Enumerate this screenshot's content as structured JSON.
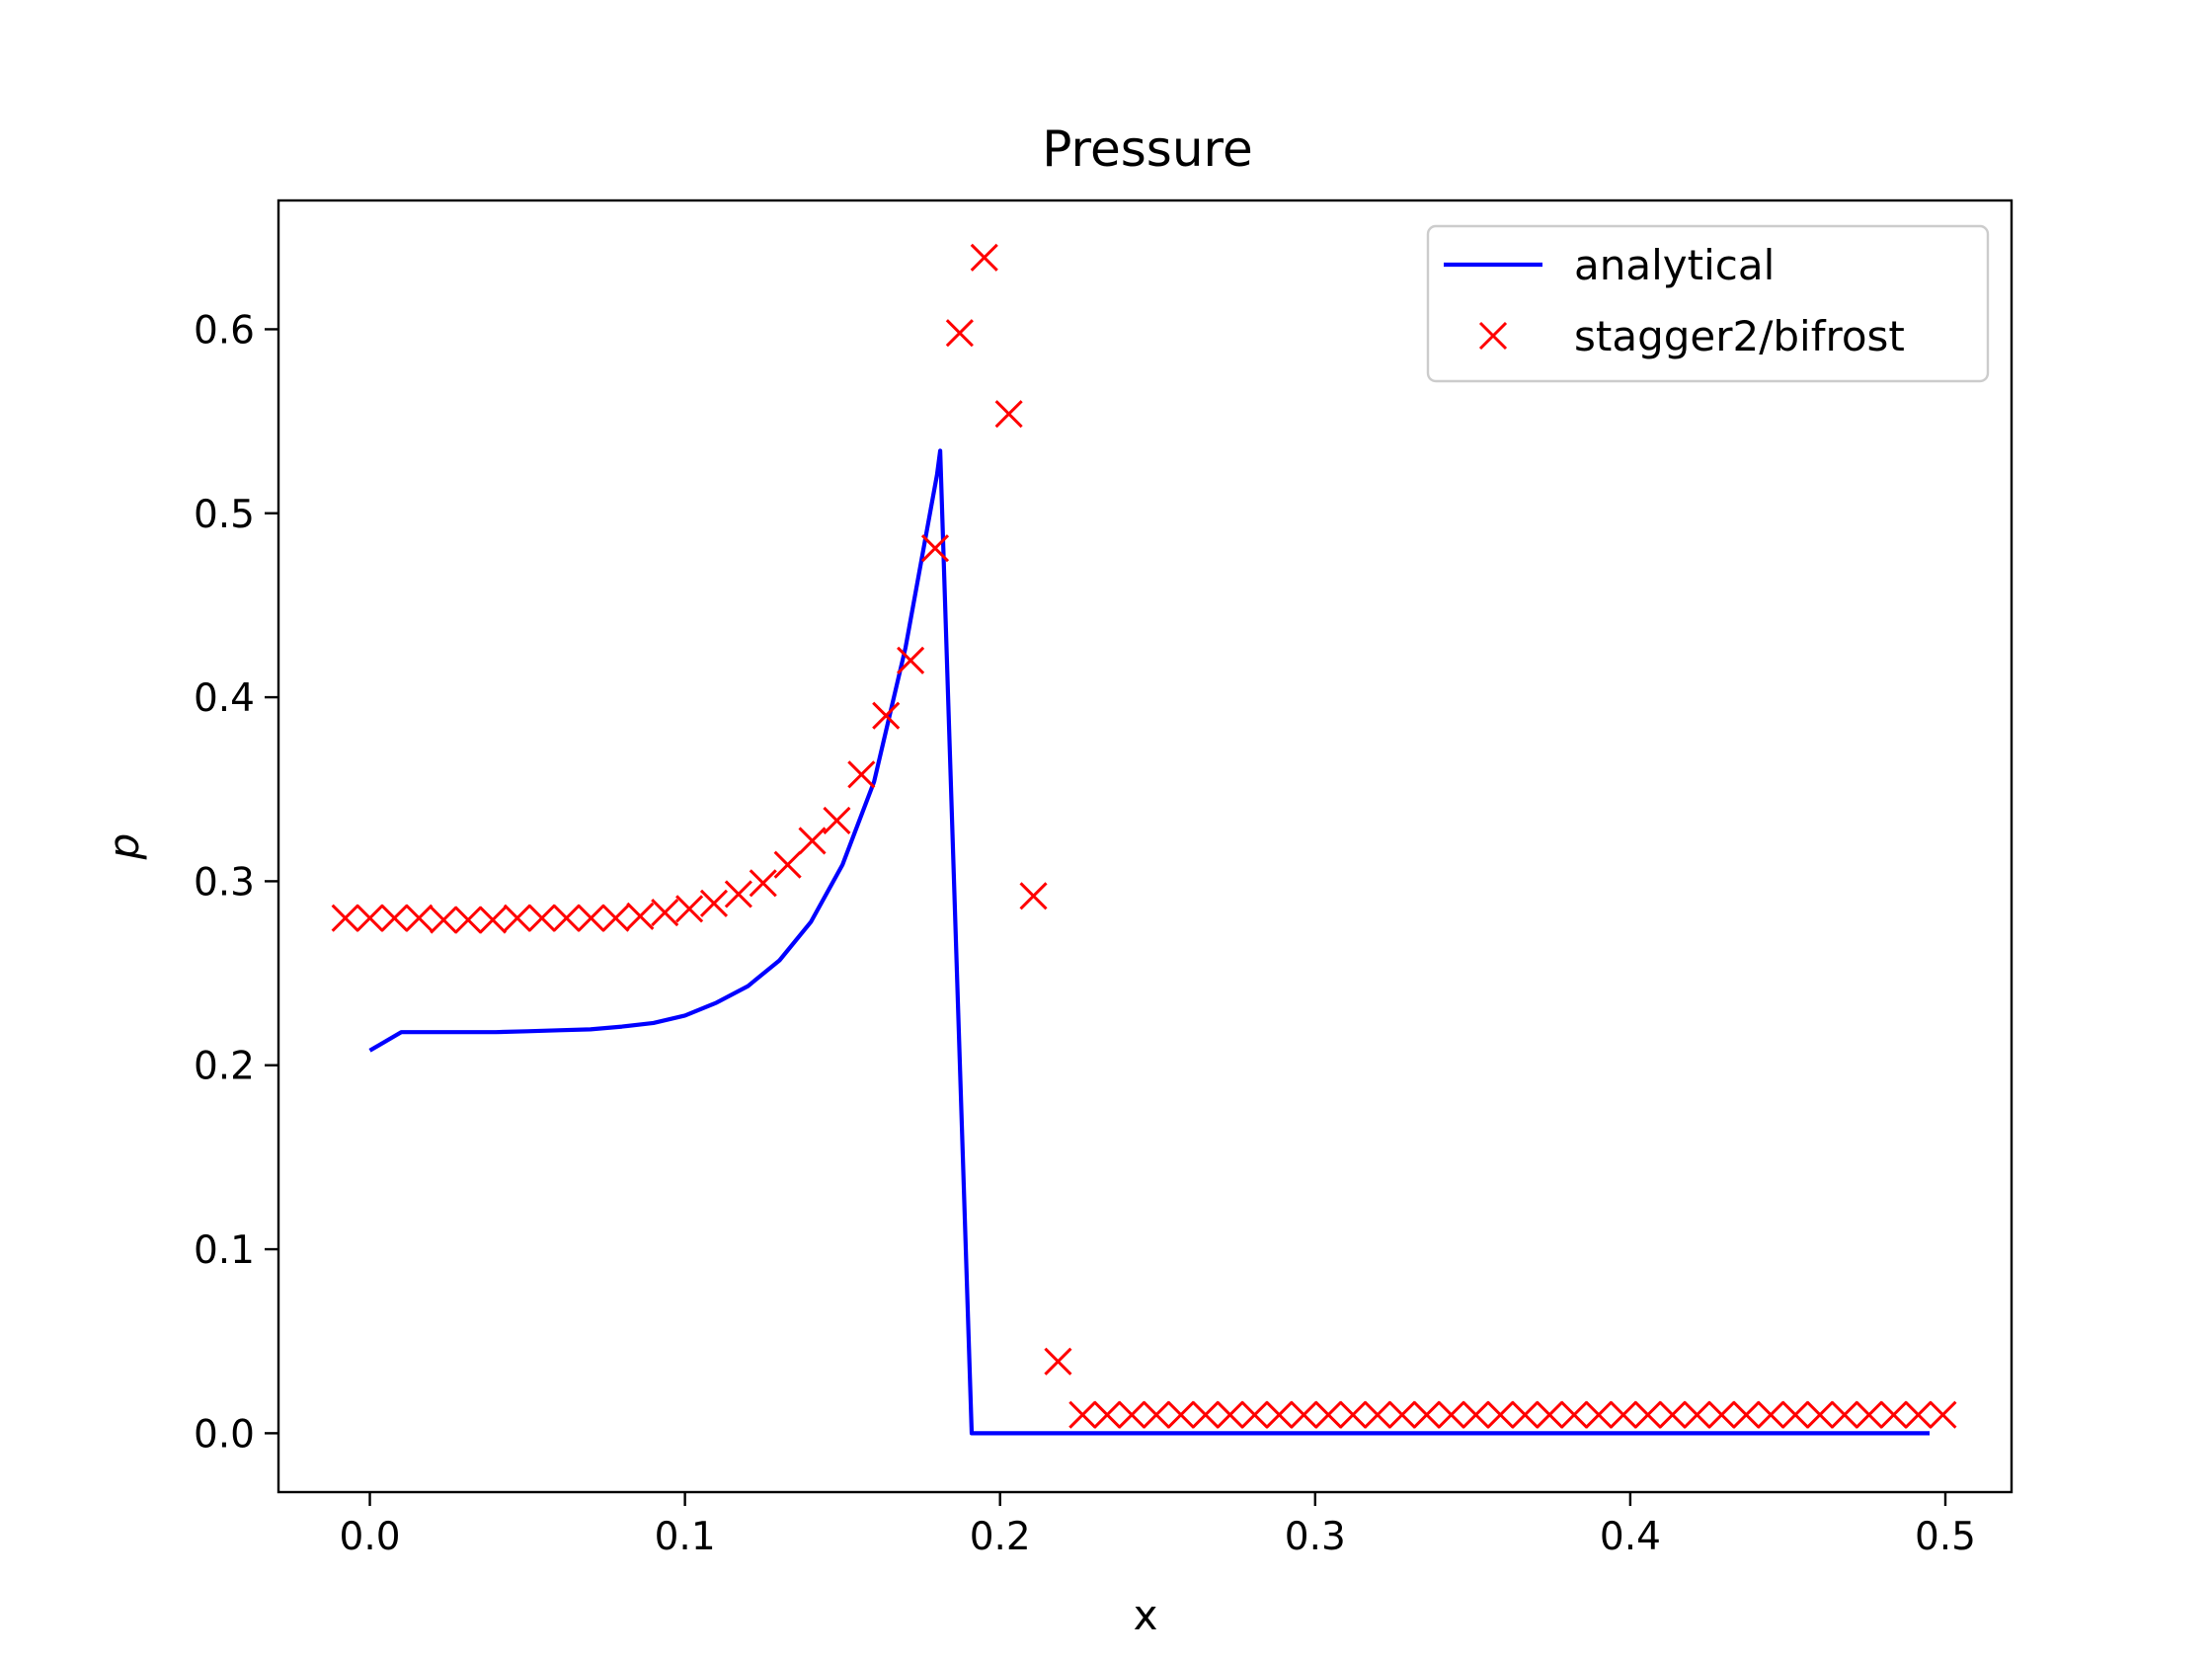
{
  "chart_data": {
    "type": "line",
    "title": "Pressure",
    "xlabel": "x",
    "ylabel": "p",
    "xlim": [
      -0.029,
      0.521
    ],
    "ylim": [
      -0.032,
      0.67
    ],
    "xticks": [
      0.0,
      0.1,
      0.2,
      0.3,
      0.4,
      0.5
    ],
    "xtick_labels": [
      "0.0",
      "0.1",
      "0.2",
      "0.3",
      "0.4",
      "0.5"
    ],
    "yticks": [
      0.0,
      0.1,
      0.2,
      0.3,
      0.4,
      0.5,
      0.6
    ],
    "ytick_labels": [
      "0.0",
      "0.1",
      "0.2",
      "0.3",
      "0.4",
      "0.5",
      "0.6"
    ],
    "grid": false,
    "legend_position": "top-right",
    "series": [
      {
        "name": "analytical",
        "color": "#0000ff",
        "marker": "none",
        "x": [
          0.0,
          0.01,
          0.02,
          0.03,
          0.04,
          0.05,
          0.06,
          0.07,
          0.08,
          0.09,
          0.1,
          0.11,
          0.12,
          0.13,
          0.14,
          0.15,
          0.16,
          0.17,
          0.18,
          0.181,
          0.191,
          0.2,
          0.3,
          0.4,
          0.495
        ],
        "y": [
          0.208,
          0.218,
          0.218,
          0.218,
          0.218,
          0.2185,
          0.219,
          0.2195,
          0.221,
          0.223,
          0.227,
          0.234,
          0.243,
          0.257,
          0.278,
          0.309,
          0.354,
          0.427,
          0.521,
          0.534,
          0.0,
          0.0,
          0.0,
          0.0,
          0.0
        ]
      },
      {
        "name": "stagger2/bifrost",
        "color": "#ff0000",
        "marker": "x",
        "x": [
          -0.0078,
          0.0,
          0.0078,
          0.0156,
          0.0234,
          0.0312,
          0.039,
          0.0468,
          0.0546,
          0.0624,
          0.0702,
          0.078,
          0.0858,
          0.0936,
          0.1014,
          0.1092,
          0.117,
          0.1248,
          0.1326,
          0.1404,
          0.1482,
          0.156,
          0.1638,
          0.1716,
          0.1794,
          0.1872,
          0.195,
          0.2028,
          0.2106,
          0.2184,
          0.2262,
          0.234,
          0.2418,
          0.2496,
          0.2574,
          0.2652,
          0.273,
          0.2808,
          0.2886,
          0.2964,
          0.3042,
          0.312,
          0.3198,
          0.3276,
          0.3354,
          0.3432,
          0.351,
          0.3588,
          0.3666,
          0.3744,
          0.3822,
          0.39,
          0.3978,
          0.4056,
          0.4134,
          0.4212,
          0.429,
          0.4368,
          0.4446,
          0.4524,
          0.4602,
          0.468,
          0.4758,
          0.4836,
          0.4914,
          0.4992
        ],
        "y": [
          0.28,
          0.28,
          0.28,
          0.28,
          0.279,
          0.279,
          0.279,
          0.28,
          0.28,
          0.28,
          0.28,
          0.28,
          0.281,
          0.283,
          0.285,
          0.288,
          0.293,
          0.299,
          0.309,
          0.322,
          0.333,
          0.358,
          0.39,
          0.42,
          0.481,
          0.598,
          0.639,
          0.554,
          0.292,
          0.039,
          0.01,
          0.01,
          0.01,
          0.01,
          0.01,
          0.01,
          0.01,
          0.01,
          0.01,
          0.01,
          0.01,
          0.01,
          0.01,
          0.01,
          0.01,
          0.01,
          0.01,
          0.01,
          0.01,
          0.01,
          0.01,
          0.01,
          0.01,
          0.01,
          0.01,
          0.01,
          0.01,
          0.01,
          0.01,
          0.01,
          0.01,
          0.01,
          0.01,
          0.01,
          0.01,
          0.01
        ]
      }
    ]
  }
}
